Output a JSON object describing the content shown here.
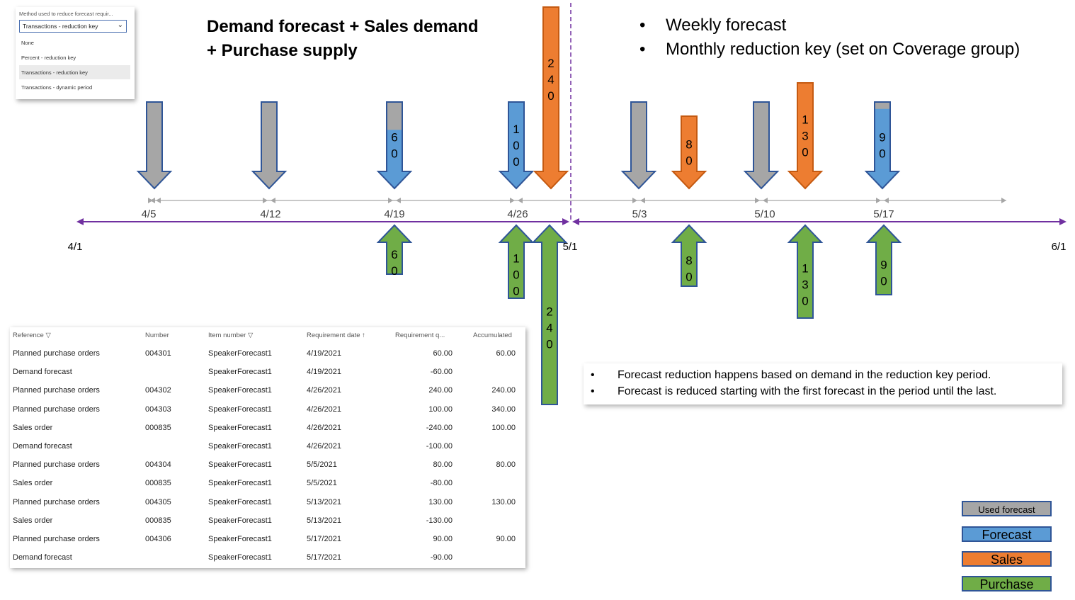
{
  "dropdown": {
    "label": "Method used to reduce forecast requir...",
    "selected": "Transactions - reduction key",
    "options": [
      "None",
      "Percent - reduction key",
      "Transactions - reduction key",
      "Transactions - dynamic period"
    ]
  },
  "heading": {
    "line1": "Demand forecast + Sales demand",
    "line2": "+ Purchase supply"
  },
  "bullets_top": [
    "Weekly forecast",
    "Monthly reduction key (set on Coverage group)"
  ],
  "timeline": {
    "start": "4/1",
    "mid": "5/1",
    "end": "6/1",
    "weeks": [
      "4/5",
      "4/12",
      "4/19",
      "4/26",
      "5/3",
      "5/10",
      "5/17"
    ]
  },
  "demand_arrows": [
    {
      "week": "4/5",
      "kind": "used_forecast",
      "qty": null,
      "forecast_part": 0
    },
    {
      "week": "4/12",
      "kind": "used_forecast",
      "qty": null,
      "forecast_part": 0
    },
    {
      "week": "4/19",
      "kind": "forecast",
      "qty": "60",
      "forecast_part": 0.6
    },
    {
      "week": "4/26",
      "kind": "forecast",
      "qty": "100",
      "forecast_part": 1
    },
    {
      "week": "4/26",
      "kind": "sales",
      "qty": "240",
      "forecast_part": 0
    },
    {
      "week": "5/3",
      "kind": "used_forecast",
      "qty": null,
      "forecast_part": 0
    },
    {
      "week": "5/3",
      "kind": "sales",
      "qty": "80",
      "forecast_part": 0
    },
    {
      "week": "5/10",
      "kind": "used_forecast",
      "qty": null,
      "forecast_part": 0
    },
    {
      "week": "5/10",
      "kind": "sales",
      "qty": "130",
      "forecast_part": 0
    },
    {
      "week": "5/17",
      "kind": "forecast",
      "qty": "90",
      "forecast_part": 0.9
    }
  ],
  "supply_arrows": [
    {
      "week": "4/19",
      "qty": "60"
    },
    {
      "week": "4/26",
      "qty": "100"
    },
    {
      "week": "4/26",
      "qty": "240"
    },
    {
      "week": "5/3",
      "qty": "80"
    },
    {
      "week": "5/10",
      "qty": "130"
    },
    {
      "week": "5/17",
      "qty": "90"
    }
  ],
  "table": {
    "headers": [
      "Reference",
      "Number",
      "Item number",
      "Requirement date",
      "Requirement q...",
      "Accumulated"
    ],
    "rows": [
      [
        "Planned purchase orders",
        "004301",
        "SpeakerForecast1",
        "4/19/2021",
        "60.00",
        "60.00"
      ],
      [
        "Demand forecast",
        "",
        "SpeakerForecast1",
        "4/19/2021",
        "-60.00",
        ""
      ],
      [
        "Planned purchase orders",
        "004302",
        "SpeakerForecast1",
        "4/26/2021",
        "240.00",
        "240.00"
      ],
      [
        "Planned purchase orders",
        "004303",
        "SpeakerForecast1",
        "4/26/2021",
        "100.00",
        "340.00"
      ],
      [
        "Sales order",
        "000835",
        "SpeakerForecast1",
        "4/26/2021",
        "-240.00",
        "100.00"
      ],
      [
        "Demand forecast",
        "",
        "SpeakerForecast1",
        "4/26/2021",
        "-100.00",
        ""
      ],
      [
        "Planned purchase orders",
        "004304",
        "SpeakerForecast1",
        "5/5/2021",
        "80.00",
        "80.00"
      ],
      [
        "Sales order",
        "000835",
        "SpeakerForecast1",
        "5/5/2021",
        "-80.00",
        ""
      ],
      [
        "Planned purchase orders",
        "004305",
        "SpeakerForecast1",
        "5/13/2021",
        "130.00",
        "130.00"
      ],
      [
        "Sales order",
        "000835",
        "SpeakerForecast1",
        "5/13/2021",
        "-130.00",
        ""
      ],
      [
        "Planned purchase orders",
        "004306",
        "SpeakerForecast1",
        "5/17/2021",
        "90.00",
        "90.00"
      ],
      [
        "Demand forecast",
        "",
        "SpeakerForecast1",
        "5/17/2021",
        "-90.00",
        ""
      ]
    ]
  },
  "notes": [
    "Forecast reduction happens based on demand in the reduction key period.",
    "Forecast is reduced starting with the first forecast in the period until the last."
  ],
  "legend": [
    {
      "label": "Used forecast",
      "color": "#a6a6a6"
    },
    {
      "label": "Forecast",
      "color": "#5b9bd5"
    },
    {
      "label": "Sales",
      "color": "#ed7d31"
    },
    {
      "label": "Purchase",
      "color": "#70ad47"
    }
  ],
  "colors": {
    "timeline": "#7030a0",
    "week_line": "#a6a6a6",
    "arrow_border": "#2f5597",
    "sales_border": "#c55a11"
  }
}
